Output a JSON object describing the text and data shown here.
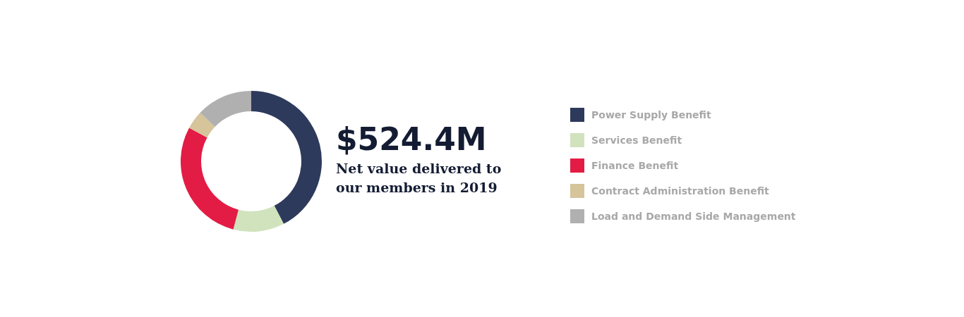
{
  "chart_data": {
    "type": "donut",
    "title": "$524.4M",
    "subtitle": "Net value delivered to our members in 2019",
    "categories": [
      "Power Supply Benefit",
      "Services Benefit",
      "Finance Benefit",
      "Contract Administration Benefit",
      "Load and Demand Side Management"
    ],
    "values": [
      42.4,
      11.7,
      28.8,
      4.2,
      12.9
    ],
    "colors": [
      "#2e3a5c",
      "#d0e3bd",
      "#e31c45",
      "#d6c49a",
      "#b0b0b0"
    ],
    "legend": "right"
  }
}
